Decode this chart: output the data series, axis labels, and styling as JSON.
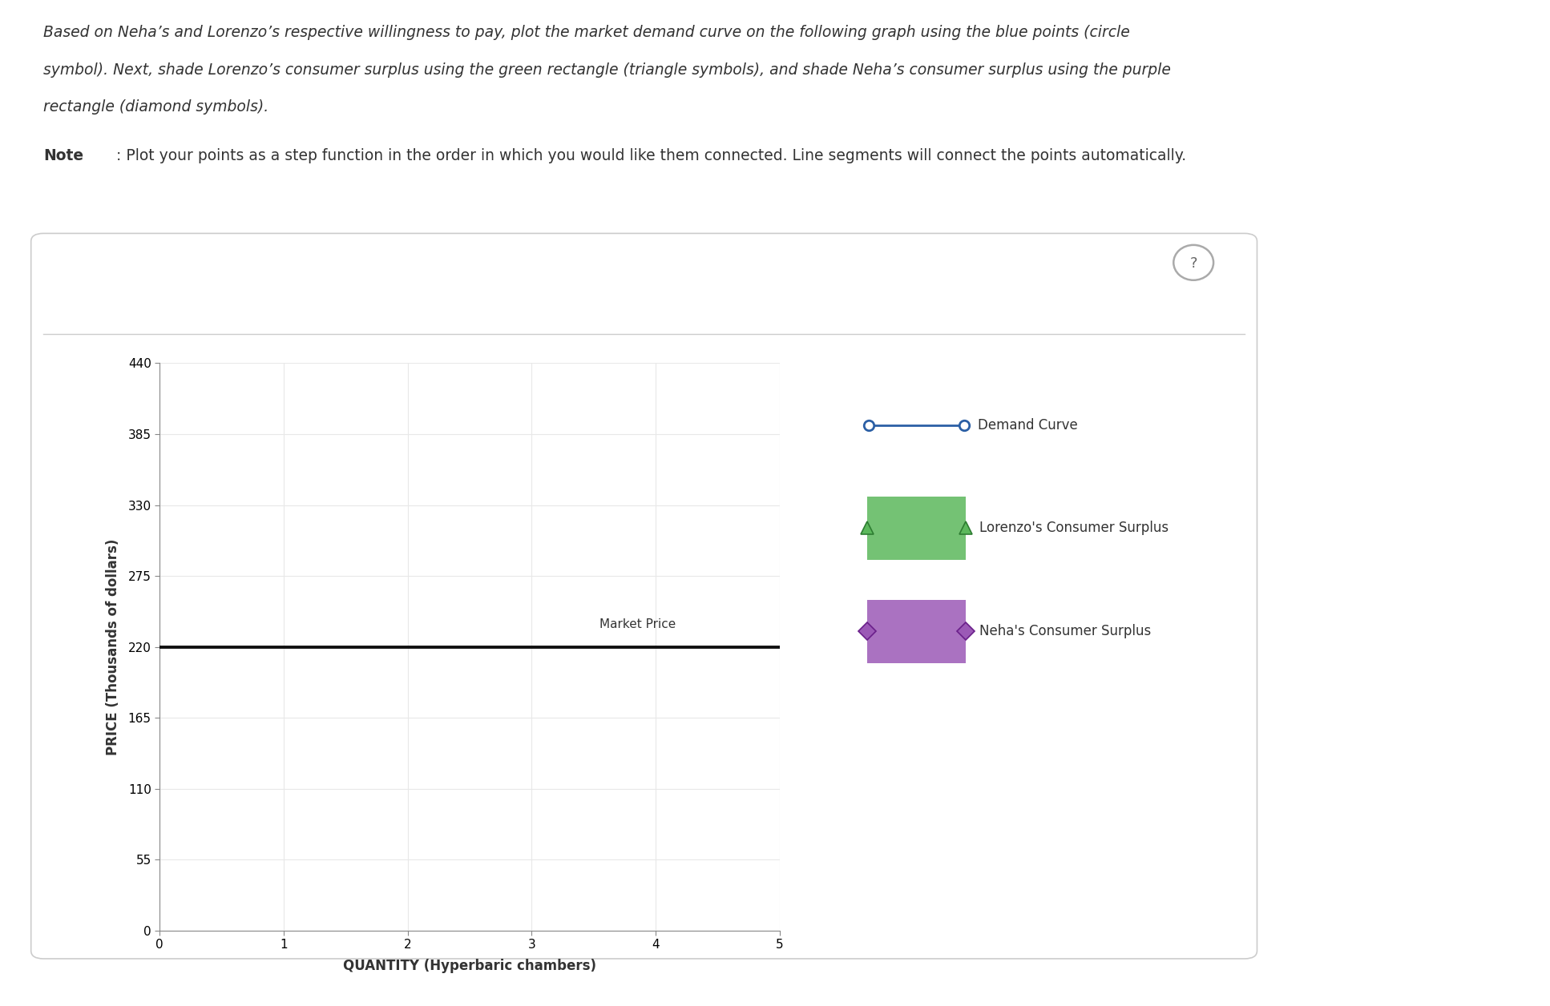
{
  "line1": "Based on Neha’s and Lorenzo’s respective willingness to pay, plot the market demand curve on the following graph using the blue points (circle",
  "line2": "symbol). Next, shade Lorenzo’s consumer surplus using the green rectangle (triangle symbols), and shade Neha’s consumer surplus using the purple",
  "line3": "rectangle (diamond symbols).",
  "note_bold": "Note",
  "note_rest": ": Plot your points as a step function in the order in which you would like them connected. Line segments will connect the points automatically.",
  "xlabel": "QUANTITY (Hyperbaric chambers)",
  "ylabel": "PRICE (Thousands of dollars)",
  "xlim": [
    0,
    5
  ],
  "ylim": [
    0,
    440
  ],
  "yticks": [
    0,
    55,
    110,
    165,
    220,
    275,
    330,
    385,
    440
  ],
  "xticks": [
    0,
    1,
    2,
    3,
    4,
    5
  ],
  "market_price": 220,
  "market_price_label": "Market Price",
  "market_price_color": "#111111",
  "demand_curve_color": "#2b5fa5",
  "demand_curve_label": "Demand Curve",
  "lorenzo_color": "#5cb85c",
  "lorenzo_label": "Lorenzo's Consumer Surplus",
  "neha_color": "#9b59b6",
  "neha_label": "Neha's Consumer Surplus",
  "background_color": "#ffffff",
  "plot_bg_color": "#ffffff",
  "grid_color": "#e8e8e8",
  "border_color": "#cccccc",
  "text_color": "#333333",
  "question_circle_color": "#aaaaaa"
}
